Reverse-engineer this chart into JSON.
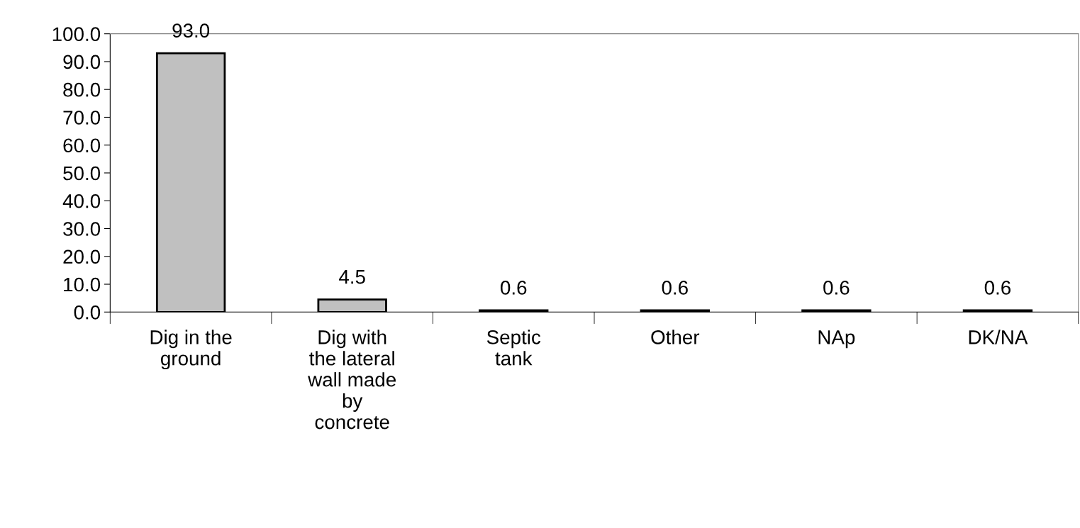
{
  "chart_data": {
    "type": "bar",
    "categories": [
      "Dig in the\nground",
      "Dig with\nthe lateral\nwall made\nby\nconcrete",
      "Septic\ntank",
      "Other",
      "NAp",
      "DK/NA"
    ],
    "values": [
      93.0,
      4.5,
      0.6,
      0.6,
      0.6,
      0.6
    ],
    "color": "#c0c0c0",
    "ylim": [
      0,
      100
    ],
    "yticks": [
      {
        "value": 0,
        "label": "0.0"
      },
      {
        "value": 10,
        "label": "10.0"
      },
      {
        "value": 20,
        "label": "20.0"
      },
      {
        "value": 30,
        "label": "30.0"
      },
      {
        "value": 40,
        "label": "40.0"
      },
      {
        "value": 50,
        "label": "50.0"
      },
      {
        "value": 60,
        "label": "60.0"
      },
      {
        "value": 70,
        "label": "70.0"
      },
      {
        "value": 80,
        "label": "80.0"
      },
      {
        "value": 90,
        "label": "90.0"
      },
      {
        "value": 100,
        "label": "100.0"
      }
    ],
    "value_labels": [
      "93.0",
      "4.5",
      "0.6",
      "0.6",
      "0.6",
      "0.6"
    ],
    "grid": false,
    "legend": false
  }
}
